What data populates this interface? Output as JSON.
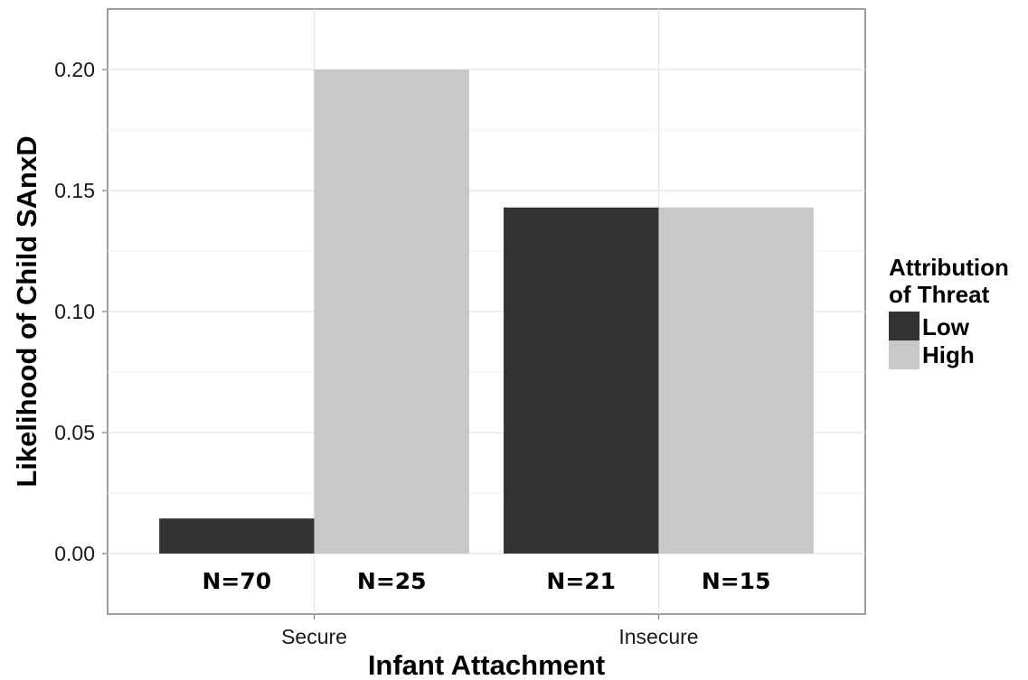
{
  "chart_data": {
    "type": "bar",
    "categories": [
      "Secure",
      "Insecure"
    ],
    "series": [
      {
        "name": "Low",
        "color": "#333333",
        "values": [
          0.0145,
          0.143
        ],
        "n_labels": [
          "N=70",
          "N=21"
        ]
      },
      {
        "name": "High",
        "color": "#c8c8c8",
        "values": [
          0.2,
          0.143
        ],
        "n_labels": [
          "N=25",
          "N=15"
        ]
      }
    ],
    "xlabel": "Infant Attachment",
    "ylabel": "Likelihood of Child SAnxD",
    "ylim": [
      -0.025,
      0.225
    ],
    "yticks": [
      0.0,
      0.05,
      0.1,
      0.15,
      0.2
    ],
    "ytick_labels": [
      "0.00",
      "0.05",
      "0.10",
      "0.15",
      "0.20"
    ],
    "grid": true,
    "legend": {
      "title_lines": [
        "Attribution",
        "of Threat"
      ],
      "entries": [
        "Low",
        "High"
      ],
      "position": "right"
    }
  }
}
